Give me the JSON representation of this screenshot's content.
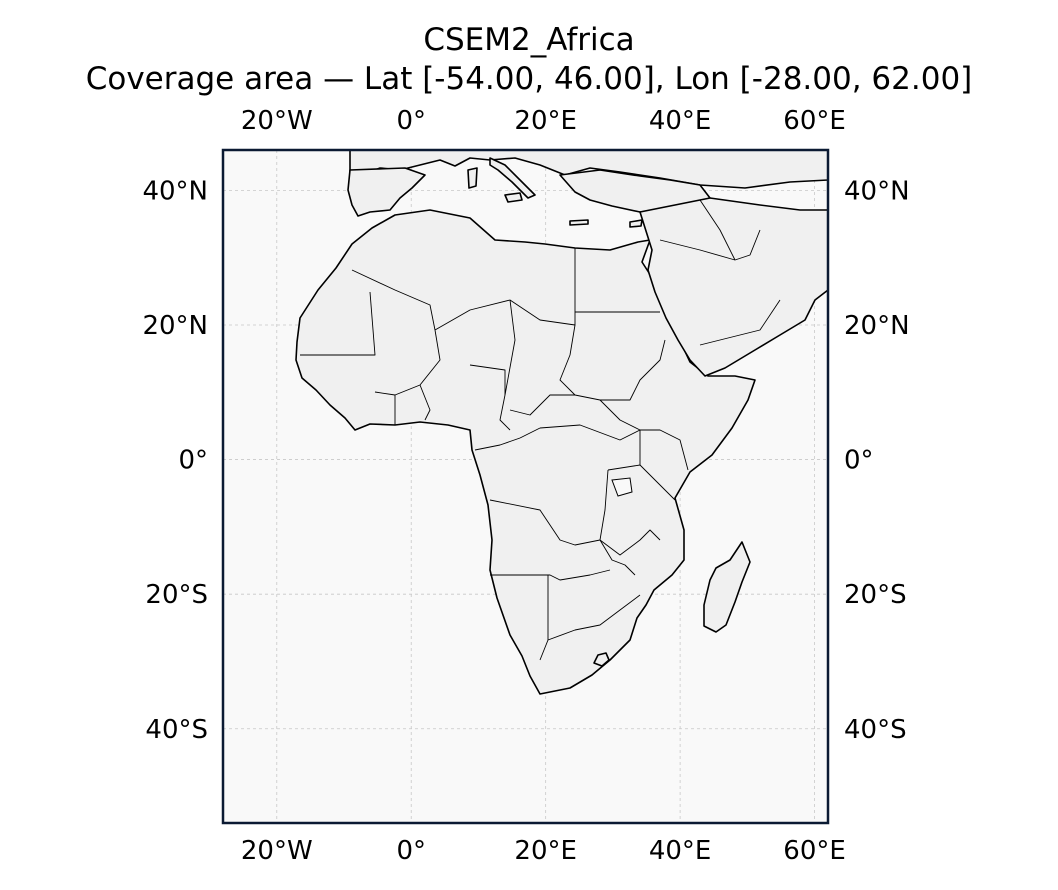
{
  "title": "CSEM2_Africa",
  "subtitle": "Coverage area — Lat [-54.00, 46.00], Lon [-28.00, 62.00]",
  "map": {
    "extent": {
      "lat": [
        -54.0,
        46.0
      ],
      "lon": [
        -28.0,
        62.0
      ]
    },
    "lon_ticks": [
      {
        "value": -20,
        "label": "20°W"
      },
      {
        "value": 0,
        "label": "0°"
      },
      {
        "value": 20,
        "label": "20°E"
      },
      {
        "value": 40,
        "label": "40°E"
      },
      {
        "value": 60,
        "label": "60°E"
      }
    ],
    "lat_ticks": [
      {
        "value": 40,
        "label": "40°N"
      },
      {
        "value": 20,
        "label": "20°N"
      },
      {
        "value": 0,
        "label": "0°"
      },
      {
        "value": -20,
        "label": "20°S"
      },
      {
        "value": -40,
        "label": "40°S"
      }
    ],
    "ocean_color": "#f9f9f9",
    "land_color": "#f0f0f0",
    "coastline_color": "#000000",
    "frame_color": "#0b1a33",
    "gridlines": true
  }
}
